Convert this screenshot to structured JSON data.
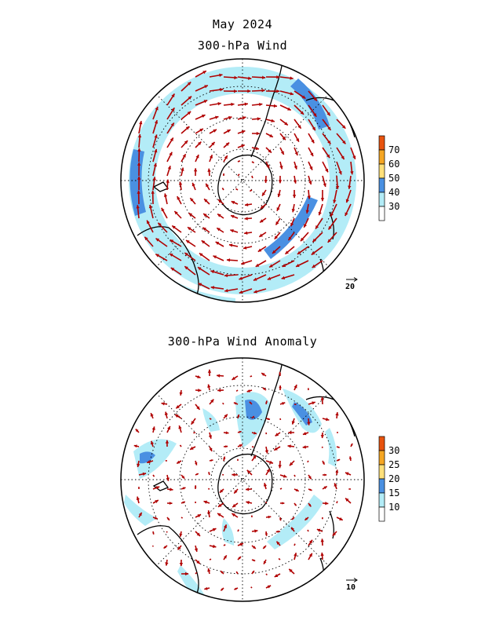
{
  "titles": {
    "month": "May 2024",
    "wind": "300-hPa Wind",
    "anomaly": "300-hPa Wind Anomaly"
  },
  "wind_panel": {
    "colorbar_levels": [
      "30",
      "40",
      "50",
      "60",
      "70"
    ],
    "colorbar_colors": [
      "#ffffff",
      "#b3ecf7",
      "#4a90e2",
      "#ffe07a",
      "#f5a623",
      "#e8530e"
    ],
    "reference_vector": "20"
  },
  "anomaly_panel": {
    "colorbar_levels": [
      "10",
      "15",
      "20",
      "25",
      "30"
    ],
    "colorbar_colors": [
      "#ffffff",
      "#b3ecf7",
      "#4a90e2",
      "#ffe07a",
      "#f5a623",
      "#e8530e"
    ],
    "reference_vector": "10"
  },
  "colors": {
    "arrow": "#b00000",
    "coast": "#000000",
    "light_shade": "#b3ecf7",
    "dark_shade": "#4a90e2"
  }
}
